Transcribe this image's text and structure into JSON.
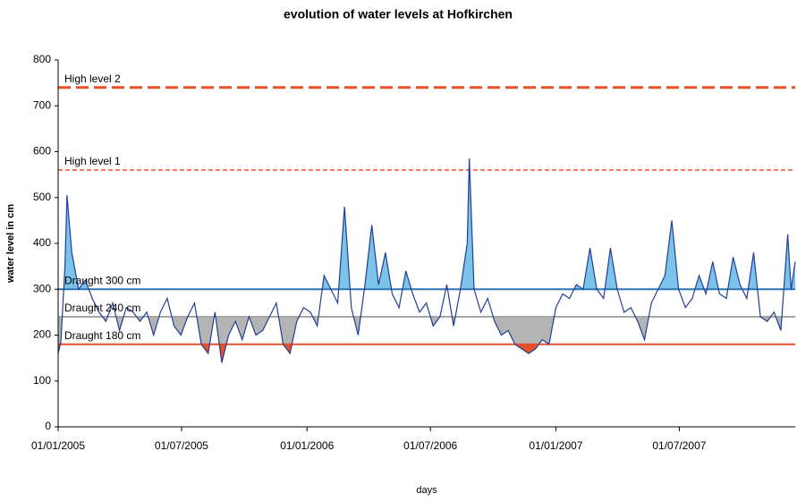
{
  "chart_data": {
    "type": "line",
    "title": "evolution of water levels at Hofkirchen",
    "x_label": "days",
    "y_label": "water level in cm",
    "xlim": [
      "2005-01-01",
      "2007-12-18"
    ],
    "xticks": [
      {
        "value": "2005-01-01",
        "label": "01/01/2005"
      },
      {
        "value": "2005-07-01",
        "label": "01/07/2005"
      },
      {
        "value": "2006-01-01",
        "label": "01/01/2006"
      },
      {
        "value": "2006-07-01",
        "label": "01/07/2006"
      },
      {
        "value": "2007-01-01",
        "label": "01/01/2007"
      },
      {
        "value": "2007-07-01",
        "label": "01/07/2007"
      }
    ],
    "ylim": [
      0,
      800
    ],
    "yticks": [
      0,
      100,
      200,
      300,
      400,
      500,
      600,
      700,
      800
    ],
    "grid": false,
    "reference_lines": [
      {
        "label": "High level 2",
        "value": 740,
        "color": "#e8502a",
        "style": "dashed-thick"
      },
      {
        "label": "High level 1",
        "value": 560,
        "color": "#e8502a",
        "style": "dashed"
      },
      {
        "label": "Draught 300 cm",
        "value": 300,
        "color": "#2e75b6",
        "style": "solid",
        "fill": "#7cc3ea",
        "fill_side": "above"
      },
      {
        "label": "Draught 240 cm",
        "value": 240,
        "color": "#a6a6a6",
        "style": "solid",
        "fill": "#b4b4b4",
        "fill_side": "below"
      },
      {
        "label": "Draught 180 cm",
        "value": 180,
        "color": "#e8502a",
        "style": "solid",
        "fill": "#e8502a",
        "fill_side": "below"
      }
    ],
    "x": [
      "2005-01-01",
      "2005-01-05",
      "2005-01-11",
      "2005-01-14",
      "2005-01-21",
      "2005-01-31",
      "2005-02-10",
      "2005-02-20",
      "2005-03-02",
      "2005-03-12",
      "2005-03-22",
      "2005-04-01",
      "2005-04-11",
      "2005-04-21",
      "2005-05-01",
      "2005-05-11",
      "2005-05-21",
      "2005-05-31",
      "2005-06-10",
      "2005-06-20",
      "2005-06-30",
      "2005-07-10",
      "2005-07-20",
      "2005-07-30",
      "2005-08-09",
      "2005-08-19",
      "2005-08-29",
      "2005-09-08",
      "2005-09-18",
      "2005-09-28",
      "2005-10-08",
      "2005-10-18",
      "2005-10-28",
      "2005-11-07",
      "2005-11-17",
      "2005-11-27",
      "2005-12-07",
      "2005-12-17",
      "2005-12-27",
      "2006-01-06",
      "2006-01-16",
      "2006-01-26",
      "2006-02-05",
      "2006-02-15",
      "2006-02-25",
      "2006-03-07",
      "2006-03-17",
      "2006-03-27",
      "2006-04-06",
      "2006-04-16",
      "2006-04-26",
      "2006-05-06",
      "2006-05-16",
      "2006-05-26",
      "2006-06-05",
      "2006-06-15",
      "2006-06-25",
      "2006-07-05",
      "2006-07-15",
      "2006-07-25",
      "2006-08-04",
      "2006-08-14",
      "2006-08-24",
      "2006-08-27",
      "2006-09-03",
      "2006-09-13",
      "2006-09-23",
      "2006-10-03",
      "2006-10-13",
      "2006-10-23",
      "2006-11-02",
      "2006-11-12",
      "2006-11-22",
      "2006-12-02",
      "2006-12-12",
      "2006-12-22",
      "2007-01-01",
      "2007-01-11",
      "2007-01-21",
      "2007-01-31",
      "2007-02-10",
      "2007-02-20",
      "2007-03-02",
      "2007-03-12",
      "2007-03-22",
      "2007-04-01",
      "2007-04-11",
      "2007-04-21",
      "2007-05-01",
      "2007-05-11",
      "2007-05-21",
      "2007-05-31",
      "2007-06-10",
      "2007-06-20",
      "2007-06-30",
      "2007-07-10",
      "2007-07-20",
      "2007-07-30",
      "2007-08-09",
      "2007-08-19",
      "2007-08-29",
      "2007-09-08",
      "2007-09-18",
      "2007-09-28",
      "2007-10-08",
      "2007-10-18",
      "2007-10-28",
      "2007-11-07",
      "2007-11-17",
      "2007-11-27",
      "2007-12-07",
      "2007-12-12",
      "2007-12-18"
    ],
    "series": [
      {
        "name": "water level",
        "color": "#1f3f99",
        "values": [
          160,
          185,
          350,
          505,
          380,
          300,
          320,
          280,
          250,
          230,
          270,
          210,
          260,
          250,
          230,
          250,
          200,
          250,
          280,
          220,
          200,
          240,
          270,
          180,
          160,
          250,
          140,
          200,
          230,
          190,
          240,
          200,
          210,
          240,
          270,
          180,
          160,
          230,
          260,
          250,
          220,
          330,
          300,
          270,
          480,
          260,
          200,
          310,
          440,
          310,
          380,
          290,
          260,
          340,
          290,
          250,
          270,
          220,
          240,
          310,
          220,
          300,
          400,
          585,
          300,
          250,
          280,
          230,
          200,
          210,
          180,
          170,
          160,
          170,
          190,
          180,
          260,
          290,
          280,
          310,
          300,
          390,
          300,
          280,
          390,
          300,
          250,
          260,
          230,
          190,
          270,
          300,
          330,
          450,
          300,
          260,
          280,
          330,
          290,
          360,
          290,
          280,
          370,
          310,
          280,
          380,
          240,
          230,
          250,
          210,
          420,
          300,
          360
        ]
      }
    ]
  }
}
